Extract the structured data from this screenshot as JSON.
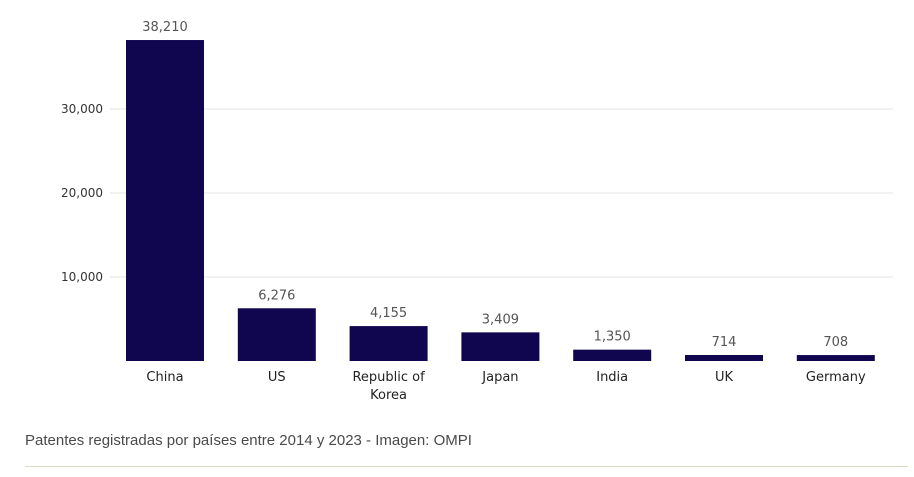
{
  "chart_data": {
    "type": "bar",
    "categories": [
      [
        "China"
      ],
      [
        "US"
      ],
      [
        "Republic of",
        "Korea"
      ],
      [
        "Japan"
      ],
      [
        "India"
      ],
      [
        "UK"
      ],
      [
        "Germany"
      ]
    ],
    "values": [
      38210,
      6276,
      4155,
      3409,
      1350,
      714,
      708
    ],
    "value_labels": [
      "38,210",
      "6,276",
      "4,155",
      "3,409",
      "1,350",
      "714",
      "708"
    ],
    "yticks": [
      10000,
      20000,
      30000
    ],
    "ytick_labels": [
      "10,000",
      "20,000",
      "30,000"
    ],
    "ylim": [
      0,
      40000
    ],
    "grid": true,
    "bar_color": "#10054f",
    "grid_color": "#e6e6e6"
  },
  "caption": "Patentes registradas por países entre 2014 y 2023 - Imagen: OMPI"
}
